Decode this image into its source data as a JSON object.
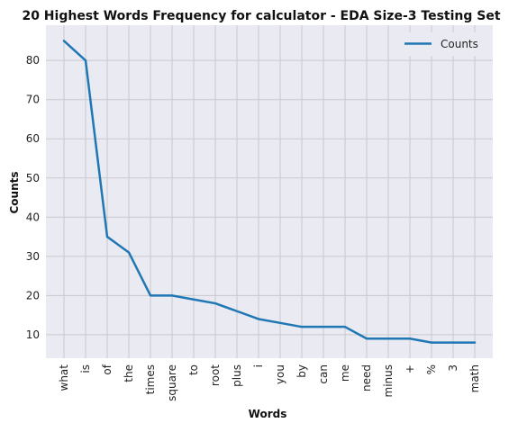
{
  "chart_data": {
    "type": "line",
    "title": "20 Highest Words Frequency for calculator - EDA Size-3 Testing Set",
    "xlabel": "Words",
    "ylabel": "Counts",
    "categories": [
      "what",
      "is",
      "of",
      "the",
      "times",
      "square",
      "to",
      "root",
      "plus",
      "i",
      "you",
      "by",
      "can",
      "me",
      "need",
      "minus",
      "+",
      "%",
      "3",
      "math"
    ],
    "series": [
      {
        "name": "Counts",
        "values": [
          85,
          80,
          35,
          31,
          20,
          20,
          19,
          18,
          16,
          14,
          13,
          12,
          12,
          12,
          9,
          9,
          9,
          8,
          8,
          8
        ]
      }
    ],
    "ylim": [
      4,
      89
    ],
    "yticks": [
      10,
      20,
      30,
      40,
      50,
      60,
      70,
      80
    ],
    "grid": true,
    "legend": "top-right",
    "colors": {
      "line": "#1f77b4",
      "plot_background": "#eaeaf2",
      "grid": "#c8c8cc"
    }
  }
}
